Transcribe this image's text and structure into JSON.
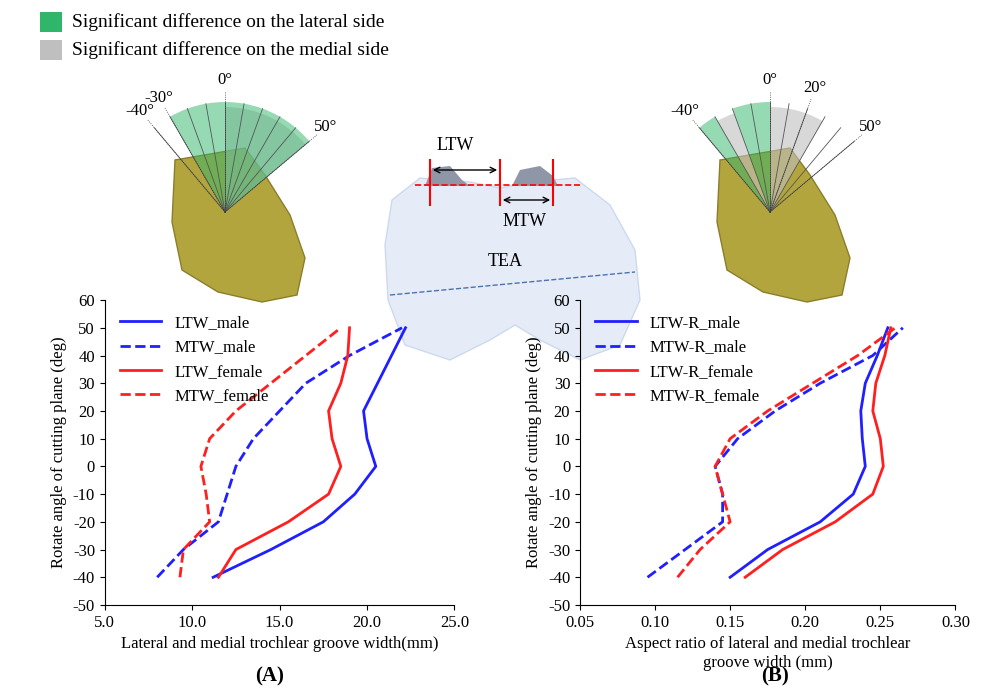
{
  "chart_data": [
    {
      "type": "line",
      "panel_label": "(A)",
      "x_label": "Lateral and medial trochlear groove width(mm)",
      "y_label": "Rotate angle of cutting plane (deg)",
      "y": [
        -40,
        -30,
        -20,
        -10,
        0,
        10,
        20,
        30,
        40,
        50
      ],
      "series": [
        {
          "name": "LTW_male",
          "color": "#1f1fff",
          "line_style": "solid",
          "values": [
            11.2,
            14.5,
            17.5,
            19.3,
            20.5,
            20.0,
            19.8,
            20.6,
            21.4,
            22.2
          ]
        },
        {
          "name": "MTW_male",
          "color": "#1f1fff",
          "line_style": "dashed",
          "values": [
            8.0,
            9.5,
            11.5,
            12.0,
            12.5,
            13.5,
            15.0,
            16.5,
            19.0,
            22.0
          ]
        },
        {
          "name": "LTW_female",
          "color": "#ff1f1f",
          "line_style": "solid",
          "values": [
            11.5,
            12.5,
            15.5,
            17.8,
            18.5,
            18.0,
            17.8,
            18.5,
            18.9,
            19.0
          ]
        },
        {
          "name": "MTW_female",
          "color": "#ff1f1f",
          "line_style": "dashed",
          "values": [
            9.3,
            9.5,
            11.0,
            10.8,
            10.5,
            11.0,
            12.5,
            14.5,
            16.5,
            18.5
          ]
        }
      ],
      "xlim": [
        5,
        25
      ],
      "xticks": [
        {
          "value": 5,
          "label": "5.0"
        },
        {
          "value": 10,
          "label": "10.0"
        },
        {
          "value": 15,
          "label": "15.0"
        },
        {
          "value": 20,
          "label": "20.0"
        },
        {
          "value": 25,
          "label": "25.0"
        }
      ],
      "ylim": [
        -50,
        60
      ],
      "yticks": [
        -50,
        -40,
        -30,
        -20,
        -10,
        0,
        10,
        20,
        30,
        40,
        50,
        60
      ],
      "legend": "upper left",
      "grid": false
    },
    {
      "type": "line",
      "panel_label": "(B)",
      "x_label": "Aspect ratio of lateral and medial trochlear\ngroove width (mm)",
      "y_label": "Rotate angle of cutting plane (deg)",
      "y": [
        -40,
        -30,
        -20,
        -10,
        0,
        10,
        20,
        30,
        40,
        50
      ],
      "series": [
        {
          "name": "LTW-R_male",
          "color": "#1f1fff",
          "line_style": "solid",
          "values": [
            0.15,
            0.175,
            0.21,
            0.232,
            0.24,
            0.238,
            0.237,
            0.24,
            0.248,
            0.255
          ]
        },
        {
          "name": "MTW-R_male",
          "color": "#1f1fff",
          "line_style": "dashed",
          "values": [
            0.095,
            0.12,
            0.145,
            0.145,
            0.14,
            0.155,
            0.18,
            0.21,
            0.245,
            0.265
          ]
        },
        {
          "name": "LTW-R_female",
          "color": "#ff1f1f",
          "line_style": "solid",
          "values": [
            0.16,
            0.185,
            0.22,
            0.245,
            0.252,
            0.25,
            0.245,
            0.247,
            0.253,
            0.257
          ]
        },
        {
          "name": "MTW-R_female",
          "color": "#ff1f1f",
          "line_style": "dashed",
          "values": [
            0.115,
            0.13,
            0.15,
            0.145,
            0.14,
            0.15,
            0.175,
            0.205,
            0.235,
            0.26
          ]
        }
      ],
      "xlim": [
        0.05,
        0.3
      ],
      "xticks": [
        {
          "value": 0.05,
          "label": "0.05"
        },
        {
          "value": 0.1,
          "label": "0.10"
        },
        {
          "value": 0.15,
          "label": "0.15"
        },
        {
          "value": 0.2,
          "label": "0.20"
        },
        {
          "value": 0.25,
          "label": "0.25"
        },
        {
          "value": 0.3,
          "label": "0.30"
        }
      ],
      "ylim": [
        -50,
        60
      ],
      "yticks": [
        -50,
        -40,
        -30,
        -20,
        -10,
        0,
        10,
        20,
        30,
        40,
        50,
        60
      ],
      "legend": "upper left",
      "grid": false
    }
  ],
  "diagram": {
    "legend": [
      {
        "label": "Significant difference on the lateral side",
        "color": "#2fb66a"
      },
      {
        "label": "Significant difference on the medial side",
        "color": "#bfbfbf"
      }
    ],
    "views": [
      {
        "angle_labels": [
          {
            "angle": -40,
            "label": "-40°"
          },
          {
            "angle": -30,
            "label": "-30°"
          },
          {
            "angle": 0,
            "label": "0°"
          },
          {
            "angle": 50,
            "label": "50°"
          }
        ],
        "lateral_ranges": [
          [
            -30,
            50
          ]
        ],
        "medial_ranges": [
          [
            0,
            50
          ]
        ]
      },
      {
        "angle_labels": [
          {
            "angle": -40,
            "label": "-40°"
          },
          {
            "angle": 0,
            "label": "0°"
          },
          {
            "angle": 20,
            "label": "20°"
          },
          {
            "angle": 50,
            "label": "50°"
          }
        ],
        "lateral_ranges": [
          [
            -40,
            -30
          ],
          [
            -20,
            0
          ]
        ],
        "medial_ranges": [
          [
            -30,
            -20
          ],
          [
            0,
            30
          ]
        ]
      }
    ],
    "knee_labels": [
      "LTW",
      "MTW",
      "TEA"
    ]
  }
}
